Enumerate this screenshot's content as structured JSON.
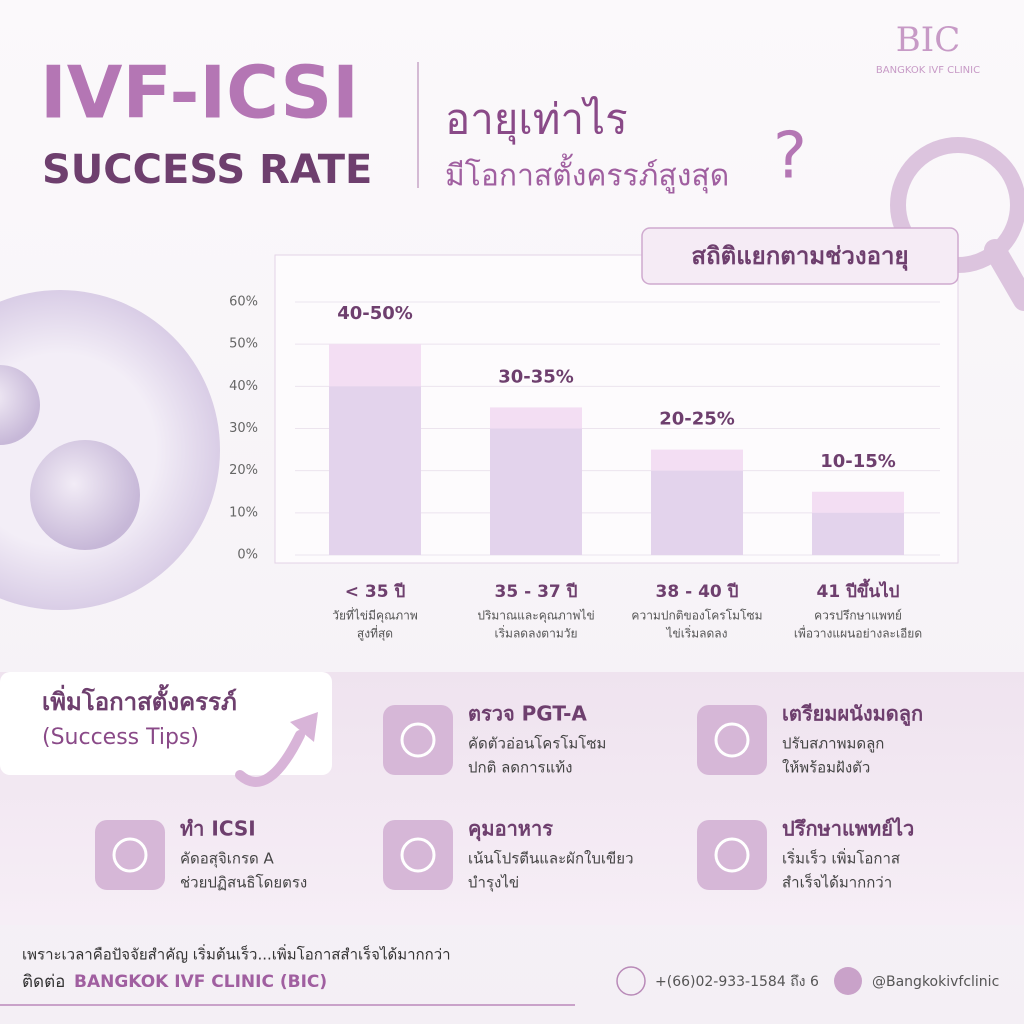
{
  "logo": {
    "mark": "BIC",
    "name": "BANGKOK IVF CLINIC"
  },
  "header": {
    "title": "IVF-ICSI",
    "subtitle": "SUCCESS RATE",
    "question_1": "อายุเท่าไร",
    "question_2": "มีโอกาสตั้งครรภ์สูงสุด",
    "question_mark": "?"
  },
  "chart_data": {
    "type": "range-bar",
    "title": "สถิติแยกตามช่วงอายุ",
    "categories": [
      "< 35 ปี",
      "35 - 37 ปี",
      "38 - 40 ปี",
      "41 ปีขึ้นไป"
    ],
    "category_notes": [
      [
        "วัยที่ไข่มีคุณภาพ",
        "สูงที่สุด"
      ],
      [
        "ปริมาณและคุณภาพไข่",
        "เริ่มลดลงตามวัย"
      ],
      [
        "ความปกติของโครโมโซม",
        "ไข่เริ่มลดลง"
      ],
      [
        "ควรปรึกษาแพทย์",
        "เพื่อวางแผนอย่างละเอียด"
      ]
    ],
    "low": [
      40,
      30,
      20,
      10
    ],
    "high": [
      50,
      35,
      25,
      15
    ],
    "value_labels": [
      "40-50%",
      "30-35%",
      "20-25%",
      "10-15%"
    ],
    "low_color": "#e3d3ec",
    "high_color": "#f3def3",
    "ylim": [
      0,
      60
    ],
    "yticks": [
      {
        "value": 0,
        "label": "0%"
      },
      {
        "value": 10,
        "label": "10%"
      },
      {
        "value": 20,
        "label": "20%"
      },
      {
        "value": 30,
        "label": "30%"
      },
      {
        "value": 40,
        "label": "40%"
      },
      {
        "value": 50,
        "label": "50%"
      },
      {
        "value": 60,
        "label": "60%"
      }
    ],
    "grid": true
  },
  "tips": {
    "heading": "เพิ่มโอกาสตั้งครรภ์",
    "subheading": "(Success Tips)",
    "items": [
      {
        "title": "ตรวจ PGT-A",
        "lines": [
          "คัดตัวอ่อนโครโมโซม",
          "ปกติ ลดการแท้ง"
        ]
      },
      {
        "title": "เตรียมผนังมดลูก",
        "lines": [
          "ปรับสภาพมดลูก",
          "ให้พร้อมฝังตัว"
        ]
      },
      {
        "title": "ทำ ICSI",
        "lines": [
          "คัดอสุจิเกรด A",
          "ช่วยปฏิสนธิโดยตรง"
        ]
      },
      {
        "title": "คุมอาหาร",
        "lines": [
          "เน้นโปรตีนและผักใบเขียว",
          "บำรุงไข่"
        ]
      },
      {
        "title": "ปรึกษาแพทย์ไว",
        "lines": [
          "เริ่มเร็ว เพิ่มโอกาส",
          "สำเร็จได้มากกว่า"
        ]
      }
    ]
  },
  "footer": {
    "message": "เพราะเวลาคือปัจจัยสำคัญ เริ่มต้นเร็ว...เพิ่มโอกาสสำเร็จได้มากกว่า",
    "contact_prefix": "ติดต่อ",
    "contact_name": "BANGKOK IVF CLINIC (BIC)",
    "phone": "+(66)02-933-1584 ถึง 6",
    "line": "@Bangkokivfclinic"
  }
}
